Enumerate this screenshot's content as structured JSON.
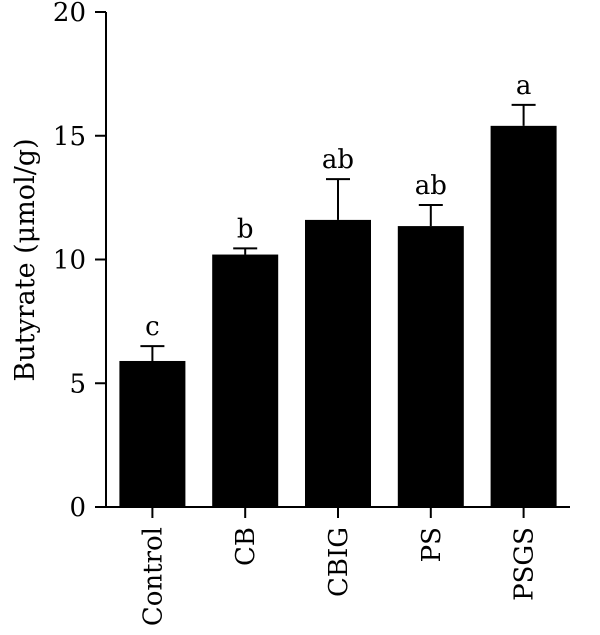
{
  "chart_data": {
    "type": "bar",
    "categories": [
      "Control",
      "CB",
      "CBIG",
      "PS",
      "PSGS"
    ],
    "values": [
      5.9,
      10.2,
      11.6,
      11.35,
      15.4
    ],
    "error": [
      0.6,
      0.25,
      1.65,
      0.85,
      0.85
    ],
    "significance": [
      "c",
      "b",
      "ab",
      "ab",
      "a"
    ],
    "ylabel": "Butyrate (μmol/g)",
    "ylim": [
      0,
      20
    ],
    "yticks": [
      0,
      5,
      10,
      15,
      20
    ],
    "ytick_labels": [
      "0",
      "5",
      "10",
      "15",
      "20"
    ],
    "bar_color": "#000000",
    "grid": false
  }
}
